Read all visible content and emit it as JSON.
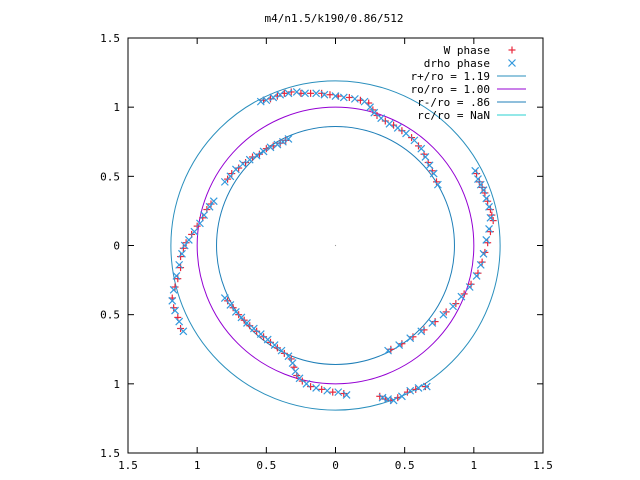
{
  "chart_data": {
    "type": "scatter",
    "title": "m4/n1.5/k190/0.86/512",
    "xlabel": "",
    "ylabel": "",
    "xlim": [
      -1.5,
      1.5
    ],
    "ylim": [
      -1.5,
      1.5
    ],
    "x_ticks": [
      "1.5",
      "1",
      "0.5",
      "0",
      "0.5",
      "1",
      "1.5"
    ],
    "y_ticks": [
      "1.5",
      "1",
      "0.5",
      "0",
      "0.5",
      "1",
      "1.5"
    ],
    "grid": false,
    "legend_position": "top-right",
    "series": [
      {
        "name": "W phase",
        "marker": "+",
        "color": "#e8283c",
        "points": [
          [
            -0.52,
            1.05
          ],
          [
            -0.47,
            1.06
          ],
          [
            -0.42,
            1.08
          ],
          [
            -0.37,
            1.1
          ],
          [
            -0.32,
            1.11
          ],
          [
            -0.25,
            1.1
          ],
          [
            -0.18,
            1.1
          ],
          [
            -0.1,
            1.1
          ],
          [
            -0.04,
            1.09
          ],
          [
            0.02,
            1.08
          ],
          [
            0.1,
            1.07
          ],
          [
            0.18,
            1.05
          ],
          [
            0.24,
            1.03
          ],
          [
            0.27,
            0.98
          ],
          [
            0.3,
            0.94
          ],
          [
            0.36,
            0.9
          ],
          [
            0.42,
            0.87
          ],
          [
            0.48,
            0.83
          ],
          [
            0.55,
            0.78
          ],
          [
            0.6,
            0.72
          ],
          [
            0.64,
            0.66
          ],
          [
            0.67,
            0.6
          ],
          [
            0.7,
            0.54
          ],
          [
            0.73,
            0.46
          ],
          [
            1.02,
            0.52
          ],
          [
            1.04,
            0.46
          ],
          [
            1.06,
            0.42
          ],
          [
            1.08,
            0.38
          ],
          [
            1.1,
            0.32
          ],
          [
            1.12,
            0.26
          ],
          [
            1.13,
            0.22
          ],
          [
            1.14,
            0.18
          ],
          [
            1.12,
            0.1
          ],
          [
            1.1,
            0.02
          ],
          [
            1.08,
            -0.05
          ],
          [
            1.06,
            -0.12
          ],
          [
            1.03,
            -0.2
          ],
          [
            0.98,
            -0.28
          ],
          [
            0.93,
            -0.35
          ],
          [
            0.87,
            -0.42
          ],
          [
            0.8,
            -0.48
          ],
          [
            0.72,
            -0.55
          ],
          [
            0.64,
            -0.61
          ],
          [
            0.56,
            -0.66
          ],
          [
            0.48,
            -0.71
          ],
          [
            0.4,
            -0.75
          ],
          [
            0.32,
            -1.09
          ],
          [
            0.36,
            -1.11
          ],
          [
            0.4,
            -1.12
          ],
          [
            0.45,
            -1.1
          ],
          [
            0.52,
            -1.06
          ],
          [
            0.58,
            -1.04
          ],
          [
            0.65,
            -1.02
          ],
          [
            -0.78,
            0.48
          ],
          [
            -0.75,
            0.52
          ],
          [
            -0.7,
            0.56
          ],
          [
            -0.65,
            0.6
          ],
          [
            -0.6,
            0.64
          ],
          [
            -0.55,
            0.66
          ],
          [
            -0.5,
            0.7
          ],
          [
            -0.45,
            0.72
          ],
          [
            -0.4,
            0.74
          ],
          [
            -0.36,
            0.76
          ],
          [
            -0.9,
            0.3
          ],
          [
            -0.93,
            0.26
          ],
          [
            -0.96,
            0.2
          ],
          [
            -1.0,
            0.14
          ],
          [
            -1.04,
            0.08
          ],
          [
            -1.08,
            0.02
          ],
          [
            -1.1,
            -0.02
          ],
          [
            -1.12,
            -0.08
          ],
          [
            -1.12,
            -0.16
          ],
          [
            -1.14,
            -0.24
          ],
          [
            -1.16,
            -0.3
          ],
          [
            -1.18,
            -0.38
          ],
          [
            -1.17,
            -0.45
          ],
          [
            -1.14,
            -0.52
          ],
          [
            -1.12,
            -0.6
          ],
          [
            -0.78,
            -0.4
          ],
          [
            -0.74,
            -0.45
          ],
          [
            -0.7,
            -0.5
          ],
          [
            -0.66,
            -0.54
          ],
          [
            -0.62,
            -0.58
          ],
          [
            -0.57,
            -0.62
          ],
          [
            -0.52,
            -0.66
          ],
          [
            -0.47,
            -0.7
          ],
          [
            -0.42,
            -0.74
          ],
          [
            -0.37,
            -0.78
          ],
          [
            -0.32,
            -0.82
          ],
          [
            -0.3,
            -0.88
          ],
          [
            -0.28,
            -0.94
          ],
          [
            -0.24,
            -0.98
          ],
          [
            -0.18,
            -1.02
          ],
          [
            -0.1,
            -1.04
          ],
          [
            -0.02,
            -1.06
          ],
          [
            0.06,
            -1.07
          ]
        ]
      },
      {
        "name": "drho phase",
        "marker": "x",
        "color": "#3399dd",
        "points": [
          [
            -0.54,
            1.04
          ],
          [
            -0.5,
            1.05
          ],
          [
            -0.45,
            1.07
          ],
          [
            -0.4,
            1.09
          ],
          [
            -0.34,
            1.1
          ],
          [
            -0.28,
            1.11
          ],
          [
            -0.22,
            1.1
          ],
          [
            -0.14,
            1.1
          ],
          [
            -0.08,
            1.09
          ],
          [
            0.0,
            1.08
          ],
          [
            0.06,
            1.07
          ],
          [
            0.14,
            1.06
          ],
          [
            0.21,
            1.04
          ],
          [
            0.25,
            1.0
          ],
          [
            0.28,
            0.96
          ],
          [
            0.33,
            0.92
          ],
          [
            0.39,
            0.88
          ],
          [
            0.45,
            0.85
          ],
          [
            0.51,
            0.81
          ],
          [
            0.57,
            0.76
          ],
          [
            0.62,
            0.7
          ],
          [
            0.65,
            0.64
          ],
          [
            0.68,
            0.58
          ],
          [
            0.71,
            0.52
          ],
          [
            0.74,
            0.44
          ],
          [
            1.01,
            0.54
          ],
          [
            1.03,
            0.48
          ],
          [
            1.05,
            0.44
          ],
          [
            1.07,
            0.4
          ],
          [
            1.09,
            0.34
          ],
          [
            1.11,
            0.28
          ],
          [
            1.12,
            0.2
          ],
          [
            1.11,
            0.12
          ],
          [
            1.09,
            0.04
          ],
          [
            1.07,
            -0.06
          ],
          [
            1.05,
            -0.14
          ],
          [
            1.02,
            -0.22
          ],
          [
            0.97,
            -0.3
          ],
          [
            0.91,
            -0.37
          ],
          [
            0.85,
            -0.44
          ],
          [
            0.78,
            -0.5
          ],
          [
            0.7,
            -0.56
          ],
          [
            0.62,
            -0.62
          ],
          [
            0.54,
            -0.67
          ],
          [
            0.46,
            -0.72
          ],
          [
            0.38,
            -0.76
          ],
          [
            0.34,
            -1.1
          ],
          [
            0.38,
            -1.11
          ],
          [
            0.42,
            -1.12
          ],
          [
            0.48,
            -1.09
          ],
          [
            0.54,
            -1.05
          ],
          [
            0.6,
            -1.03
          ],
          [
            0.66,
            -1.02
          ],
          [
            -0.8,
            0.46
          ],
          [
            -0.76,
            0.5
          ],
          [
            -0.72,
            0.55
          ],
          [
            -0.67,
            0.59
          ],
          [
            -0.62,
            0.62
          ],
          [
            -0.57,
            0.65
          ],
          [
            -0.52,
            0.68
          ],
          [
            -0.47,
            0.71
          ],
          [
            -0.42,
            0.73
          ],
          [
            -0.38,
            0.75
          ],
          [
            -0.34,
            0.77
          ],
          [
            -0.88,
            0.32
          ],
          [
            -0.91,
            0.28
          ],
          [
            -0.95,
            0.22
          ],
          [
            -0.98,
            0.16
          ],
          [
            -1.02,
            0.1
          ],
          [
            -1.06,
            0.04
          ],
          [
            -1.09,
            0.0
          ],
          [
            -1.11,
            -0.06
          ],
          [
            -1.13,
            -0.14
          ],
          [
            -1.15,
            -0.22
          ],
          [
            -1.17,
            -0.32
          ],
          [
            -1.18,
            -0.4
          ],
          [
            -1.16,
            -0.47
          ],
          [
            -1.13,
            -0.55
          ],
          [
            -1.1,
            -0.62
          ],
          [
            -0.8,
            -0.38
          ],
          [
            -0.76,
            -0.43
          ],
          [
            -0.72,
            -0.48
          ],
          [
            -0.68,
            -0.52
          ],
          [
            -0.64,
            -0.56
          ],
          [
            -0.59,
            -0.6
          ],
          [
            -0.54,
            -0.64
          ],
          [
            -0.49,
            -0.68
          ],
          [
            -0.44,
            -0.72
          ],
          [
            -0.39,
            -0.76
          ],
          [
            -0.34,
            -0.8
          ],
          [
            -0.31,
            -0.85
          ],
          [
            -0.29,
            -0.91
          ],
          [
            -0.26,
            -0.96
          ],
          [
            -0.21,
            -1.0
          ],
          [
            -0.14,
            -1.03
          ],
          [
            -0.06,
            -1.05
          ],
          [
            0.02,
            -1.06
          ],
          [
            0.08,
            -1.08
          ]
        ]
      }
    ],
    "circles": [
      {
        "name": "r+/ro = 1.19",
        "radius": 1.19,
        "color": "#2a8fbd"
      },
      {
        "name": "ro/ro = 1.00",
        "radius": 1.0,
        "color": "#9400d3"
      },
      {
        "name": "r-/ro = .86",
        "radius": 0.86,
        "color": "#1f7fb8"
      },
      {
        "name": "rc/ro = NaN",
        "radius": null,
        "color": "#2ad0d0"
      }
    ]
  }
}
